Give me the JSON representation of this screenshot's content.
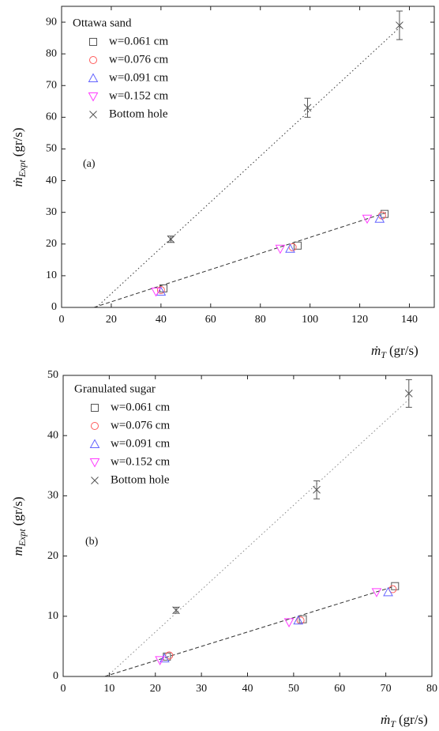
{
  "chart_data": [
    {
      "type": "scatter",
      "annotation": "(a)",
      "legend_title": "Ottawa sand",
      "xlabel_symbol": "ṁ",
      "xlabel_subscript": "T",
      "xlabel_unit": "(gr/s)",
      "ylabel_symbol": "ṁ",
      "ylabel_subscript": "Expt",
      "ylabel_unit": "(gr/s)",
      "xlim": [
        0,
        150
      ],
      "xticks": [
        0,
        20,
        40,
        60,
        80,
        100,
        120,
        140
      ],
      "ylim": [
        0,
        95
      ],
      "yticks": [
        0,
        10,
        20,
        30,
        40,
        50,
        60,
        70,
        80,
        90
      ],
      "legend": "upper left",
      "series": [
        {
          "name": "w=0.061 cm",
          "marker": "square",
          "color": "#555555",
          "x": [
            41,
            95,
            130
          ],
          "values": [
            6,
            19.5,
            29.5
          ]
        },
        {
          "name": "w=0.076 cm",
          "marker": "circle",
          "color": "#ff5a5a",
          "x": [
            40,
            93,
            129
          ],
          "values": [
            5.5,
            19,
            29
          ]
        },
        {
          "name": "w=0.091 cm",
          "marker": "triangle",
          "color": "#6464ff",
          "x": [
            40,
            92,
            128
          ],
          "values": [
            5,
            18.5,
            28
          ]
        },
        {
          "name": "w=0.152 cm",
          "marker": "triangle-down",
          "color": "#ff3cff",
          "x": [
            38,
            88,
            123
          ],
          "values": [
            5,
            18.5,
            28
          ]
        },
        {
          "name": "Bottom hole",
          "marker": "x",
          "color": "#555555",
          "x": [
            44,
            99,
            136
          ],
          "values": [
            21.5,
            63,
            89
          ],
          "errors": [
            1,
            3,
            4.5
          ]
        }
      ],
      "fit_lines": [
        {
          "style": "dotted",
          "color": "#333333",
          "x": [
            14,
            137
          ],
          "y": [
            0,
            89
          ]
        },
        {
          "style": "dashed",
          "color": "#333333",
          "x": [
            13,
            131
          ],
          "y": [
            0,
            30
          ]
        }
      ]
    },
    {
      "type": "scatter",
      "annotation": "(b)",
      "legend_title": "Granulated sugar",
      "xlabel_symbol": "ṁ",
      "xlabel_subscript": "T",
      "xlabel_unit": "(gr/s)",
      "ylabel_symbol": "m",
      "ylabel_subscript": "Expt",
      "ylabel_unit": "(gr/s)",
      "xlim": [
        0,
        80
      ],
      "xticks": [
        0,
        10,
        20,
        30,
        40,
        50,
        60,
        70,
        80
      ],
      "ylim": [
        0,
        50
      ],
      "yticks": [
        0,
        10,
        20,
        30,
        40,
        50
      ],
      "legend": "upper left",
      "series": [
        {
          "name": "w=0.061 cm",
          "marker": "square",
          "color": "#555555",
          "x": [
            22.5,
            52,
            72
          ],
          "values": [
            3.3,
            9.5,
            15
          ]
        },
        {
          "name": "w=0.076 cm",
          "marker": "circle",
          "color": "#ff5a5a",
          "x": [
            23,
            51.5,
            71.5
          ],
          "values": [
            3.5,
            9.3,
            14.5
          ]
        },
        {
          "name": "w=0.091 cm",
          "marker": "triangle",
          "color": "#6464ff",
          "x": [
            22,
            51,
            70.5
          ],
          "values": [
            3,
            9.3,
            14
          ]
        },
        {
          "name": "w=0.152 cm",
          "marker": "triangle-down",
          "color": "#ff3cff",
          "x": [
            21,
            49,
            68
          ],
          "values": [
            2.7,
            9,
            14
          ]
        },
        {
          "name": "Bottom hole",
          "marker": "x",
          "color": "#555555",
          "x": [
            24.5,
            55,
            75
          ],
          "values": [
            11,
            31,
            47
          ],
          "errors": [
            0.5,
            1.5,
            2.3
          ]
        }
      ],
      "fit_lines": [
        {
          "style": "dotted",
          "color": "#888888",
          "x": [
            9.5,
            75
          ],
          "y": [
            0,
            46
          ]
        },
        {
          "style": "dashed",
          "color": "#333333",
          "x": [
            9,
            72
          ],
          "y": [
            0,
            15
          ]
        }
      ]
    }
  ]
}
